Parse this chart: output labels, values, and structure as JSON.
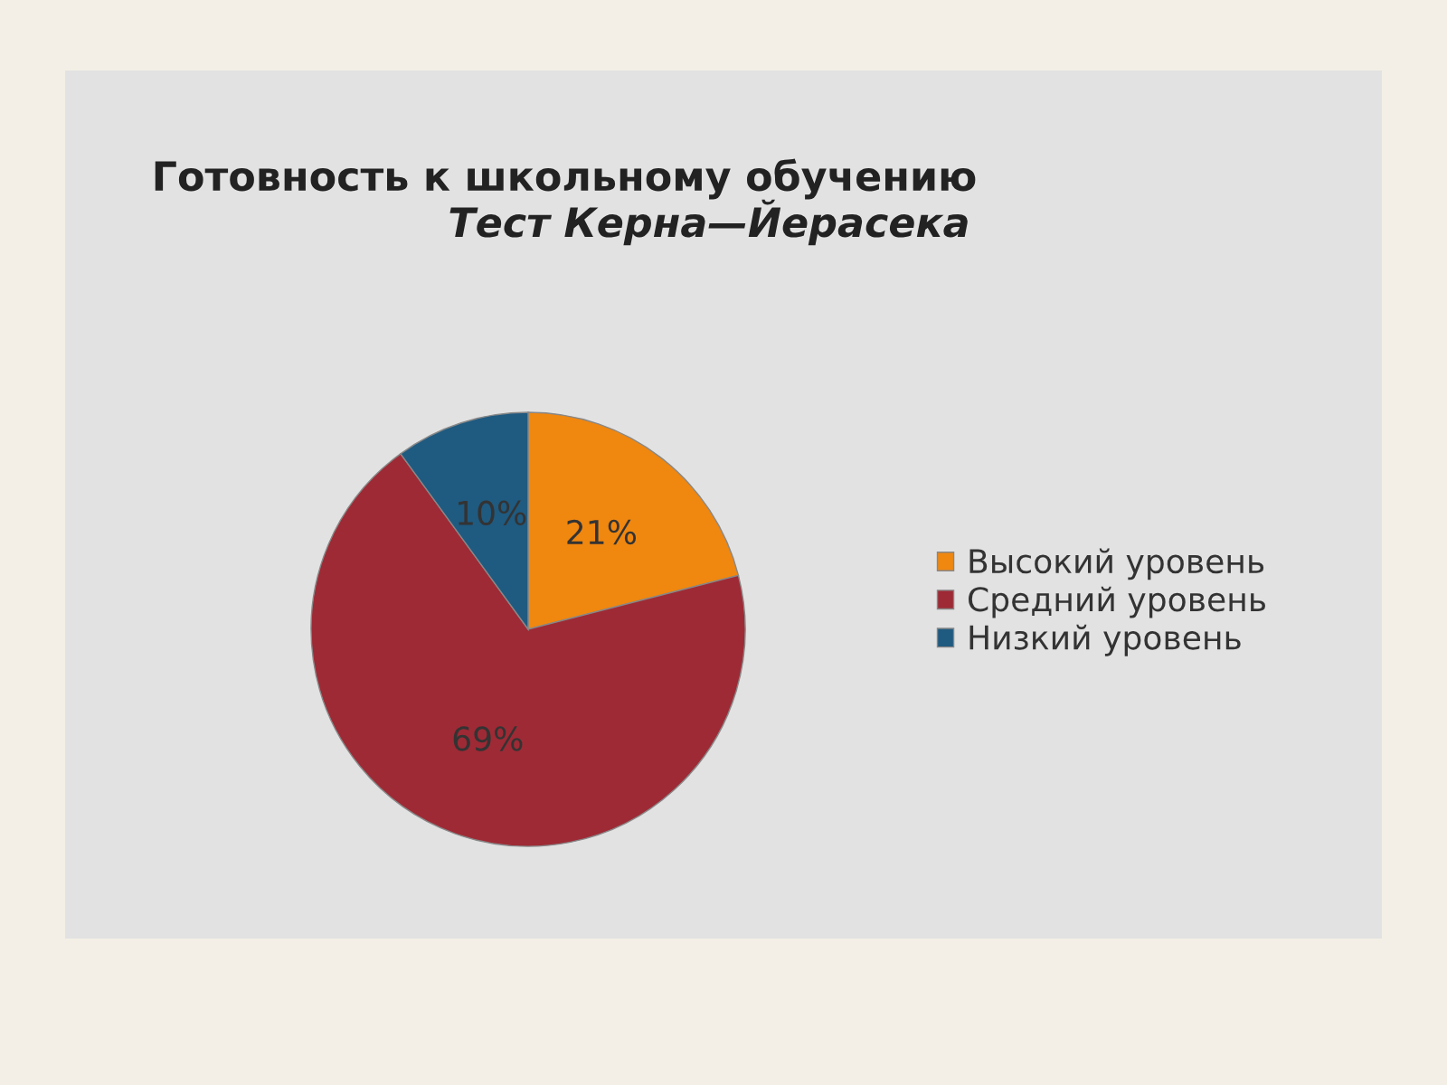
{
  "chart_data": {
    "type": "pie",
    "title": "Готовность к школьному обучению",
    "subtitle": "Тест Керна—Йерасека",
    "categories": [
      "Высокий уровень",
      "Средний уровень",
      "Низкий уровень"
    ],
    "values": [
      21,
      69,
      10
    ],
    "colors": [
      "#f0870f",
      "#9e2a35",
      "#1f5a80"
    ],
    "value_labels": [
      "21%",
      "69%",
      "10%"
    ],
    "legend": "right"
  }
}
